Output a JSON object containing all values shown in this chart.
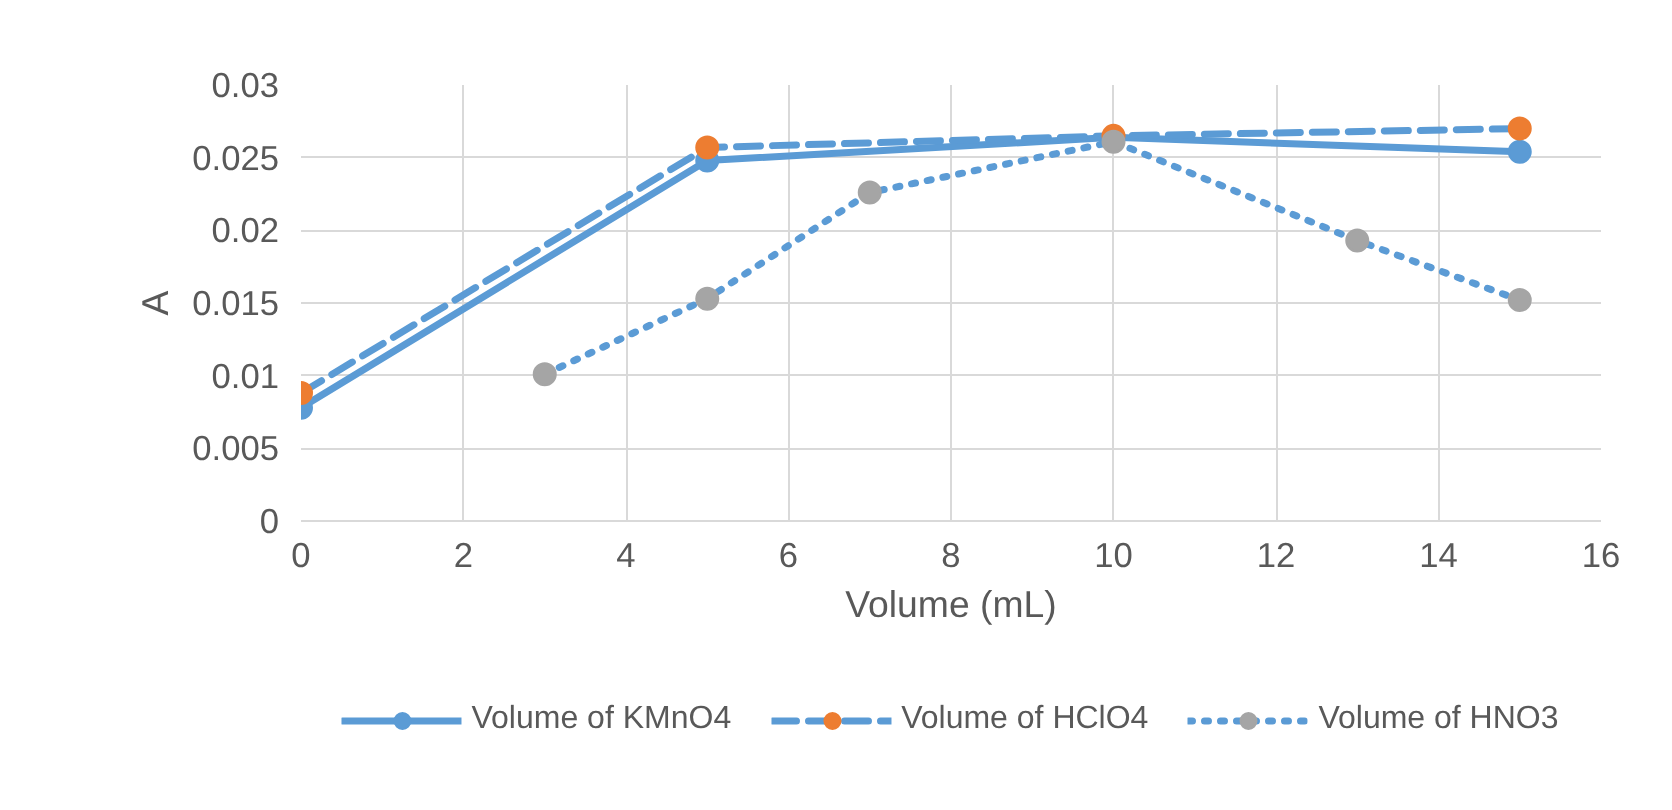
{
  "chart_data": {
    "type": "line",
    "xlabel": "Volume (mL)",
    "ylabel": "A",
    "x": [
      0,
      5,
      10,
      15
    ],
    "series": [
      {
        "name": "Volume of KMnO4",
        "color": "#5b9bd5",
        "line_style": "solid",
        "colors": [
          "#5b9bd5",
          "#5b9bd5",
          "#5b9bd5",
          "#5b9bd5"
        ],
        "values": [
          0.0078,
          0.0248,
          0.0264,
          0.0254
        ]
      },
      {
        "name": "Volume of HClO4",
        "color": "#5b9bd5",
        "line_style": "dashed",
        "colors": [
          "#ed7d31",
          "#ed7d31",
          "#ed7d31",
          "#ed7d31"
        ],
        "values": [
          0.0088,
          0.0257,
          0.0265,
          0.027
        ]
      },
      {
        "name": "Volume of HNO3",
        "color": "#5b9bd5",
        "line_style": "dotted",
        "x": [
          3,
          5,
          7,
          10,
          13,
          15
        ],
        "colors": [
          "#a5a5a5",
          "#a5a5a5",
          "#a5a5a5",
          "#a5a5a5",
          "#a5a5a5",
          "#a5a5a5"
        ],
        "values": [
          0.0101,
          0.0153,
          0.0226,
          0.0261,
          0.0193,
          0.0152
        ]
      }
    ],
    "xlim": [
      0,
      16
    ],
    "xticks": [
      0,
      2,
      4,
      6,
      8,
      10,
      12,
      14,
      16
    ],
    "ylim": [
      0,
      0.03
    ],
    "yticks": [
      0,
      0.005,
      0.01,
      0.015,
      0.02,
      0.025,
      0.03
    ],
    "grid": true,
    "legend": "bottom",
    "marker": "circle"
  }
}
